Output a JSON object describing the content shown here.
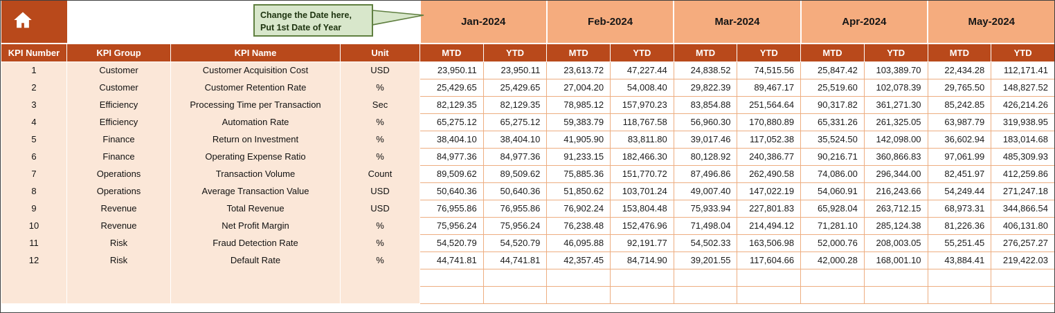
{
  "callout": {
    "line1": "Change the Date here,",
    "line2": "Put 1st Date of Year"
  },
  "table": {
    "left_columns": [
      "KPI Number",
      "KPI Group",
      "KPI Name",
      "Unit"
    ],
    "months": [
      "Jan-2024",
      "Feb-2024",
      "Mar-2024",
      "Apr-2024",
      "May-2024"
    ],
    "subheaders": [
      "MTD",
      "YTD"
    ],
    "rows": [
      {
        "kpi_number": "1",
        "kpi_group": "Customer",
        "kpi_name": "Customer Acquisition Cost",
        "unit": "USD",
        "values": [
          "23,950.11",
          "23,950.11",
          "23,613.72",
          "47,227.44",
          "24,838.52",
          "74,515.56",
          "25,847.42",
          "103,389.70",
          "22,434.28",
          "112,171.41"
        ]
      },
      {
        "kpi_number": "2",
        "kpi_group": "Customer",
        "kpi_name": "Customer Retention Rate",
        "unit": "%",
        "values": [
          "25,429.65",
          "25,429.65",
          "27,004.20",
          "54,008.40",
          "29,822.39",
          "89,467.17",
          "25,519.60",
          "102,078.39",
          "29,765.50",
          "148,827.52"
        ]
      },
      {
        "kpi_number": "3",
        "kpi_group": "Efficiency",
        "kpi_name": "Processing Time per Transaction",
        "unit": "Sec",
        "values": [
          "82,129.35",
          "82,129.35",
          "78,985.12",
          "157,970.23",
          "83,854.88",
          "251,564.64",
          "90,317.82",
          "361,271.30",
          "85,242.85",
          "426,214.26"
        ]
      },
      {
        "kpi_number": "4",
        "kpi_group": "Efficiency",
        "kpi_name": "Automation Rate",
        "unit": "%",
        "values": [
          "65,275.12",
          "65,275.12",
          "59,383.79",
          "118,767.58",
          "56,960.30",
          "170,880.89",
          "65,331.26",
          "261,325.05",
          "63,987.79",
          "319,938.95"
        ]
      },
      {
        "kpi_number": "5",
        "kpi_group": "Finance",
        "kpi_name": "Return on Investment",
        "unit": "%",
        "values": [
          "38,404.10",
          "38,404.10",
          "41,905.90",
          "83,811.80",
          "39,017.46",
          "117,052.38",
          "35,524.50",
          "142,098.00",
          "36,602.94",
          "183,014.68"
        ]
      },
      {
        "kpi_number": "6",
        "kpi_group": "Finance",
        "kpi_name": "Operating Expense Ratio",
        "unit": "%",
        "values": [
          "84,977.36",
          "84,977.36",
          "91,233.15",
          "182,466.30",
          "80,128.92",
          "240,386.77",
          "90,216.71",
          "360,866.83",
          "97,061.99",
          "485,309.93"
        ]
      },
      {
        "kpi_number": "7",
        "kpi_group": "Operations",
        "kpi_name": "Transaction Volume",
        "unit": "Count",
        "values": [
          "89,509.62",
          "89,509.62",
          "75,885.36",
          "151,770.72",
          "87,496.86",
          "262,490.58",
          "74,086.00",
          "296,344.00",
          "82,451.97",
          "412,259.86"
        ]
      },
      {
        "kpi_number": "8",
        "kpi_group": "Operations",
        "kpi_name": "Average Transaction Value",
        "unit": "USD",
        "values": [
          "50,640.36",
          "50,640.36",
          "51,850.62",
          "103,701.24",
          "49,007.40",
          "147,022.19",
          "54,060.91",
          "216,243.66",
          "54,249.44",
          "271,247.18"
        ]
      },
      {
        "kpi_number": "9",
        "kpi_group": "Revenue",
        "kpi_name": "Total Revenue",
        "unit": "USD",
        "values": [
          "76,955.86",
          "76,955.86",
          "76,902.24",
          "153,804.48",
          "75,933.94",
          "227,801.83",
          "65,928.04",
          "263,712.15",
          "68,973.31",
          "344,866.54"
        ]
      },
      {
        "kpi_number": "10",
        "kpi_group": "Revenue",
        "kpi_name": "Net Profit Margin",
        "unit": "%",
        "values": [
          "75,956.24",
          "75,956.24",
          "76,238.48",
          "152,476.96",
          "71,498.04",
          "214,494.12",
          "71,281.10",
          "285,124.38",
          "81,226.36",
          "406,131.80"
        ]
      },
      {
        "kpi_number": "11",
        "kpi_group": "Risk",
        "kpi_name": "Fraud Detection Rate",
        "unit": "%",
        "values": [
          "54,520.79",
          "54,520.79",
          "46,095.88",
          "92,191.77",
          "54,502.33",
          "163,506.98",
          "52,000.76",
          "208,003.05",
          "55,251.45",
          "276,257.27"
        ]
      },
      {
        "kpi_number": "12",
        "kpi_group": "Risk",
        "kpi_name": "Default Rate",
        "unit": "%",
        "values": [
          "44,741.81",
          "44,741.81",
          "42,357.45",
          "84,714.90",
          "39,201.55",
          "117,604.66",
          "42,000.28",
          "168,001.10",
          "43,884.41",
          "219,422.03"
        ]
      }
    ],
    "empty_row_count": 2
  },
  "colors": {
    "header": "#B9491B",
    "month_band": "#F5AC7E",
    "left_fill": "#FBE7D8",
    "grid": "#EDAD80",
    "callout_bg": "#D8E7CB",
    "callout_border": "#5F7F40"
  }
}
